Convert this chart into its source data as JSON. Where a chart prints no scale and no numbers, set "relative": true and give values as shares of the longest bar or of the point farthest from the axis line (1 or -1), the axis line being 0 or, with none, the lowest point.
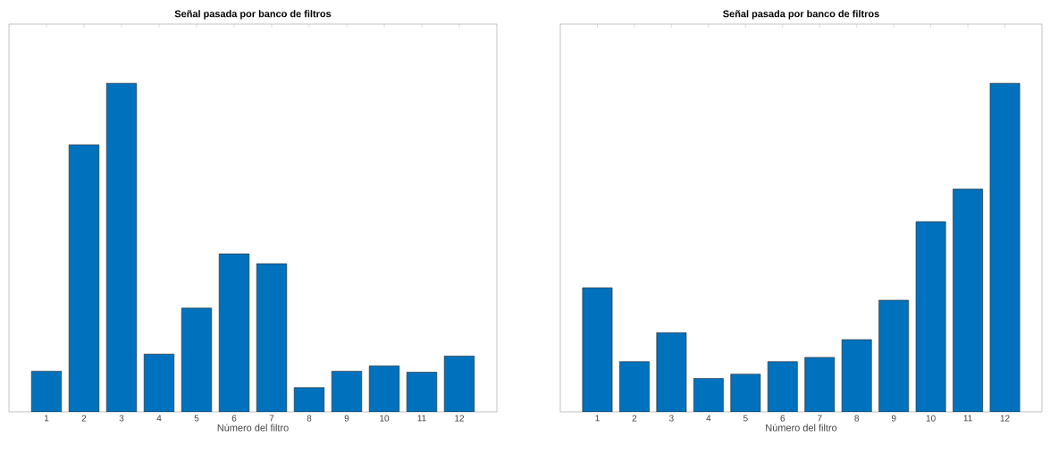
{
  "chart_data": [
    {
      "type": "bar",
      "title": "Señal pasada por banco de filtros",
      "xlabel": "Número del filtro",
      "categories": [
        "1",
        "2",
        "3",
        "4",
        "5",
        "6",
        "7",
        "8",
        "9",
        "10",
        "11",
        "12"
      ],
      "values": [
        0.124,
        0.813,
        1,
        0.176,
        0.316,
        0.481,
        0.451,
        0.074,
        0.124,
        0.14,
        0.121,
        0.17
      ],
      "color": "#0072bd",
      "relative": true
    },
    {
      "type": "bar",
      "title": "Señal pasada por banco de filtros",
      "xlabel": "Número del filtro",
      "categories": [
        "1",
        "2",
        "3",
        "4",
        "5",
        "6",
        "7",
        "8",
        "9",
        "10",
        "11",
        "12"
      ],
      "values": [
        0.378,
        0.153,
        0.241,
        0.102,
        0.115,
        0.153,
        0.166,
        0.22,
        0.34,
        0.579,
        0.678,
        1
      ],
      "color": "#0072bd",
      "relative": true
    }
  ]
}
